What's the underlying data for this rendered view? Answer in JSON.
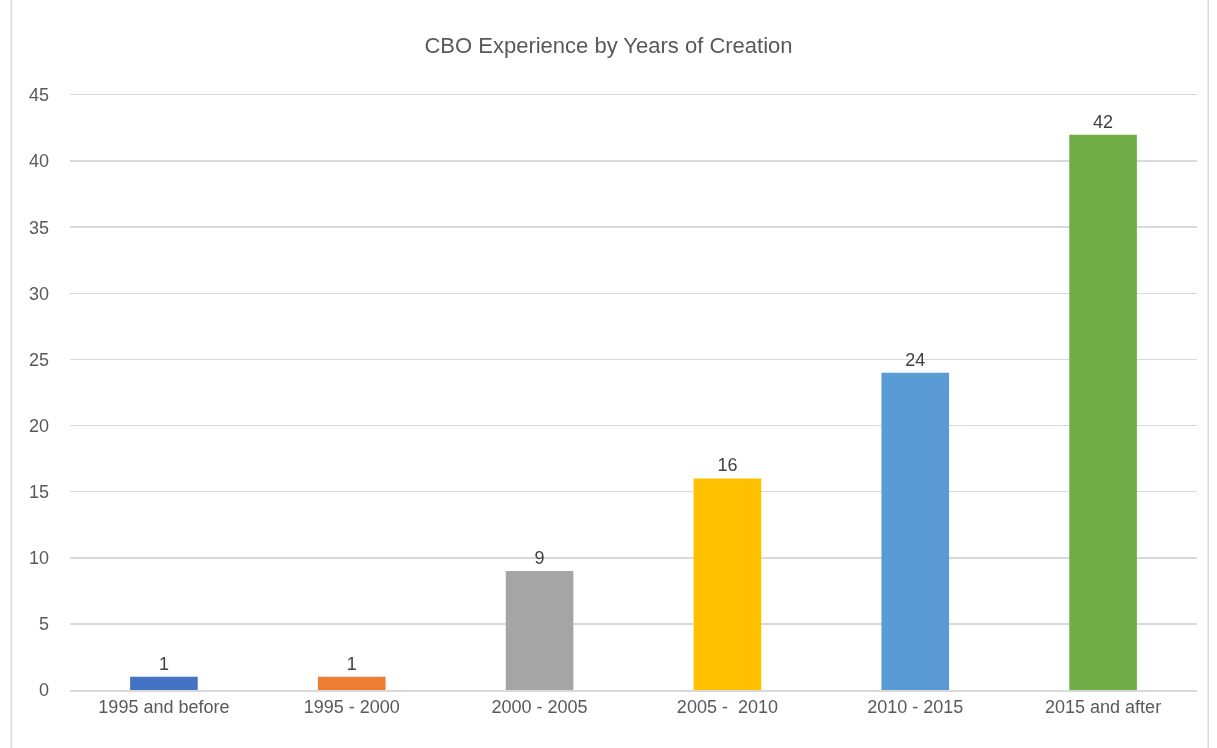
{
  "chart_data": {
    "type": "bar",
    "title": "CBO Experience by Years of Creation",
    "categories": [
      "1995 and before",
      "1995 - 2000",
      "2000 - 2005",
      "2005 -  2010",
      "2010 - 2015",
      "2015 and after"
    ],
    "values": [
      1,
      1,
      9,
      16,
      24,
      42
    ],
    "colors": [
      "#4472c4",
      "#ed7d31",
      "#a5a5a5",
      "#ffc000",
      "#5b9bd5",
      "#70ad47"
    ],
    "ylim": [
      0,
      45
    ],
    "yticks": [
      0,
      5,
      10,
      15,
      20,
      25,
      30,
      35,
      40,
      45
    ],
    "grid": "y",
    "data_labels": true
  }
}
